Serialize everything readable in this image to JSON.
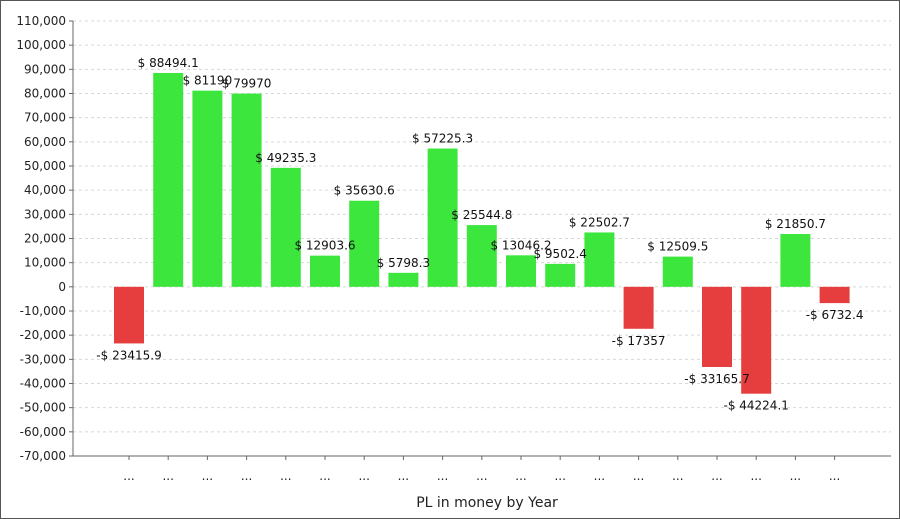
{
  "chart_data": {
    "type": "bar",
    "title": "",
    "xlabel": "PL in money by Year",
    "ylabel": "",
    "ylim": [
      -70000,
      110000
    ],
    "ytick_step": 10000,
    "grid": true,
    "categories": [
      "...",
      "...",
      "...",
      "...",
      "...",
      "...",
      "...",
      "...",
      "...",
      "...",
      "...",
      "...",
      "...",
      "...",
      "...",
      "...",
      "...",
      "...",
      "..."
    ],
    "values": [
      -23415.9,
      88494.1,
      81190,
      79970,
      49235.3,
      12903.6,
      35630.6,
      5798.3,
      57225.3,
      25544.8,
      13046.2,
      9502.4,
      22502.7,
      -17357,
      12509.5,
      -33165.7,
      -44224.1,
      21850.7,
      -6732.4
    ],
    "data_labels": [
      "-$ 23415.9",
      "$ 88494.1",
      "$ 81190",
      "$ 79970",
      "$ 49235.3",
      "$ 12903.6",
      "$ 35630.6",
      "$ 5798.3",
      "$ 57225.3",
      "$ 25544.8",
      "$ 13046.2",
      "$ 9502.4",
      "$ 22502.7",
      "-$ 17357",
      "$ 12509.5",
      "-$ 33165.7",
      "-$ 44224.1",
      "$ 21850.7",
      "-$ 6732.4"
    ],
    "colors": {
      "positive": "#3de63d",
      "negative": "#e63e3e"
    }
  }
}
